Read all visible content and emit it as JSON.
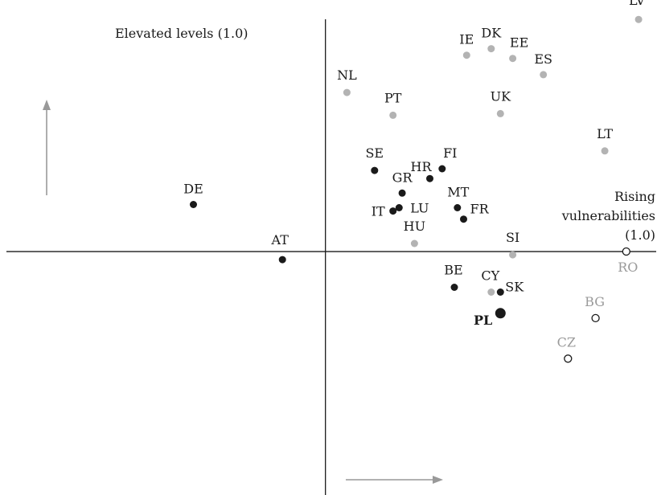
{
  "chart_data": {
    "type": "scatter",
    "title": "",
    "xlabel": "",
    "ylabel": "",
    "xlim": [
      -1.06,
      1.08
    ],
    "ylim": [
      -1.5,
      1.55
    ],
    "grid": false,
    "annotations": {
      "y_axis_label": "Elevated levels (1.0)",
      "x_axis_label_line1": "Rising",
      "x_axis_label_line2": "vulnerabilities",
      "x_axis_label_line3": "(1.0)"
    },
    "style": {
      "black": "#1a1a1a",
      "grey": "#b3b3b3",
      "grey_label": "#9a9a9a",
      "hollow_fill": "#ffffff",
      "arrow": "#999999"
    },
    "points": [
      {
        "label": "LV",
        "x": 1.02,
        "y": 1.43,
        "group": "grey"
      },
      {
        "label": "IE",
        "x": 0.46,
        "y": 1.21,
        "group": "grey"
      },
      {
        "label": "DK",
        "x": 0.54,
        "y": 1.25,
        "group": "grey"
      },
      {
        "label": "EE",
        "x": 0.61,
        "y": 1.19,
        "group": "grey"
      },
      {
        "label": "ES",
        "x": 0.71,
        "y": 1.09,
        "group": "grey"
      },
      {
        "label": "NL",
        "x": 0.07,
        "y": 0.98,
        "group": "grey"
      },
      {
        "label": "PT",
        "x": 0.22,
        "y": 0.84,
        "group": "grey"
      },
      {
        "label": "UK",
        "x": 0.57,
        "y": 0.85,
        "group": "grey"
      },
      {
        "label": "LT",
        "x": 0.91,
        "y": 0.62,
        "group": "grey"
      },
      {
        "label": "SE",
        "x": 0.16,
        "y": 0.5,
        "group": "black"
      },
      {
        "label": "HR",
        "x": 0.34,
        "y": 0.45,
        "group": "black"
      },
      {
        "label": "FI",
        "x": 0.38,
        "y": 0.51,
        "group": "black"
      },
      {
        "label": "GR",
        "x": 0.25,
        "y": 0.36,
        "group": "black"
      },
      {
        "label": "DE",
        "x": -0.43,
        "y": 0.29,
        "group": "black"
      },
      {
        "label": "MT",
        "x": 0.43,
        "y": 0.27,
        "group": "black"
      },
      {
        "label": "IT",
        "x": 0.22,
        "y": 0.25,
        "group": "black"
      },
      {
        "label": "LU",
        "x": 0.24,
        "y": 0.27,
        "group": "black"
      },
      {
        "label": "FR",
        "x": 0.45,
        "y": 0.2,
        "group": "black"
      },
      {
        "label": "HU",
        "x": 0.29,
        "y": 0.05,
        "group": "grey"
      },
      {
        "label": "SI",
        "x": 0.61,
        "y": -0.02,
        "group": "grey"
      },
      {
        "label": "AT",
        "x": -0.14,
        "y": -0.05,
        "group": "black"
      },
      {
        "label": "RO",
        "x": 0.98,
        "y": 0.0,
        "group": "hollow"
      },
      {
        "label": "BE",
        "x": 0.42,
        "y": -0.22,
        "group": "black"
      },
      {
        "label": "CY",
        "x": 0.54,
        "y": -0.25,
        "group": "grey"
      },
      {
        "label": "SK",
        "x": 0.57,
        "y": -0.25,
        "group": "black"
      },
      {
        "label": "PL",
        "x": 0.57,
        "y": -0.38,
        "group": "black-large"
      },
      {
        "label": "BG",
        "x": 0.88,
        "y": -0.41,
        "group": "hollow"
      },
      {
        "label": "CZ",
        "x": 0.79,
        "y": -0.66,
        "group": "hollow"
      }
    ]
  }
}
